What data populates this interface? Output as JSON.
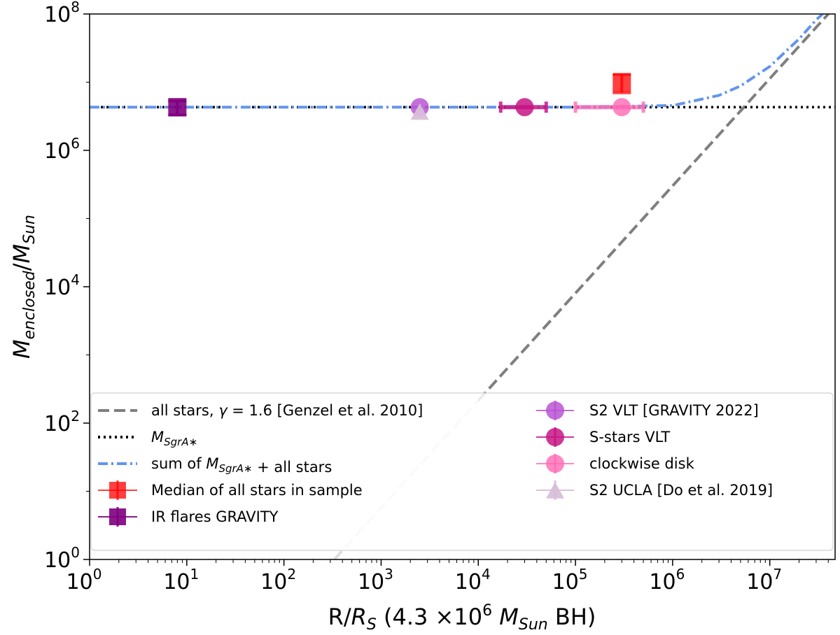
{
  "chart_data": {
    "type": "scatter",
    "title": "",
    "xlabel": {
      "main": "R/",
      "sym": "R",
      "sub": "S",
      "paren_open": " (4.3 ×10",
      "exp": "6",
      "msym": "M",
      "msub": "Sun",
      "tail": " BH)"
    },
    "ylabel": {
      "sym1": "M",
      "sub1": "enclosed",
      "slash": "/",
      "sym2": "M",
      "sub2": "Sun"
    },
    "xscale": "log",
    "yscale": "log",
    "xlim": [
      1,
      47000000
    ],
    "ylim": [
      1,
      100000000
    ],
    "xticks": [
      {
        "base": "10",
        "exp": "0"
      },
      {
        "base": "10",
        "exp": "1"
      },
      {
        "base": "10",
        "exp": "2"
      },
      {
        "base": "10",
        "exp": "3"
      },
      {
        "base": "10",
        "exp": "4"
      },
      {
        "base": "10",
        "exp": "5"
      },
      {
        "base": "10",
        "exp": "6"
      },
      {
        "base": "10",
        "exp": "7"
      }
    ],
    "yticks": [
      {
        "base": "10",
        "exp": "0"
      },
      {
        "base": "10",
        "exp": "2"
      },
      {
        "base": "10",
        "exp": "4"
      },
      {
        "base": "10",
        "exp": "6"
      },
      {
        "base": "10",
        "exp": "8"
      }
    ],
    "grid": false,
    "legend_position": "lower",
    "lines": [
      {
        "key": "stars",
        "name_pre": "all stars, ",
        "name_sym": "γ",
        "name_post": " = 1.6 [Genzel et al. 2010]",
        "color": "#7f7f7f",
        "style": "dashed",
        "faded_below_x": 10000,
        "faded_color": "#dddddd",
        "points": [
          [
            330,
            1
          ],
          [
            40000000,
            100000000
          ]
        ]
      },
      {
        "key": "bh",
        "name_sym": "M",
        "name_sub": "SgrA∗",
        "color": "#000000",
        "style": "dotted",
        "points": [
          [
            1,
            4300000
          ],
          [
            47000000,
            4300000
          ]
        ]
      },
      {
        "key": "sum",
        "name_pre": "sum of ",
        "name_sym": "M",
        "name_sub": "SgrA∗",
        "name_post": " + all stars",
        "color": "#6495ed",
        "style": "dashdot",
        "points": [
          [
            1,
            4300000
          ],
          [
            100000,
            4300000
          ],
          [
            1000000,
            4540000
          ],
          [
            3000000,
            6400000
          ],
          [
            5000000,
            8800000
          ],
          [
            10000000,
            17000000
          ],
          [
            20000000,
            43000000
          ],
          [
            30000000,
            82000000
          ],
          [
            35000000,
            100000000
          ]
        ]
      }
    ],
    "points": [
      {
        "key": "median",
        "name": "Median of all stars in sample",
        "color": "#ff0000",
        "marker": "square",
        "x": 300000,
        "y": 9800000,
        "yerr": [
          7000000,
          13000000
        ],
        "xerr": null,
        "alpha": 0.75
      },
      {
        "key": "flares",
        "name": "IR flares GRAVITY",
        "color": "#800080",
        "marker": "square",
        "x": 8,
        "y": 4300000,
        "yerr": [
          3300000,
          5300000
        ],
        "xerr": null,
        "alpha": 0.9
      },
      {
        "key": "s2vlt",
        "name": "S2 VLT [GRAVITY 2022]",
        "color": "#ba55d3",
        "marker": "circle",
        "x": 2500,
        "y": 4300000,
        "yerr": null,
        "xerr": null,
        "alpha": 0.85
      },
      {
        "key": "sstars",
        "name": "S-stars VLT",
        "color": "#c71585",
        "marker": "circle",
        "x": 30000,
        "y": 4300000,
        "yerr": null,
        "xerr": [
          17000,
          50000
        ],
        "alpha": 0.85
      },
      {
        "key": "cwdisk",
        "name": "clockwise disk",
        "color": "#ff69b4",
        "marker": "circle",
        "x": 300000,
        "y": 4300000,
        "yerr": null,
        "xerr": [
          100000,
          500000
        ],
        "alpha": 0.8
      },
      {
        "key": "s2ucla",
        "name": "S2 UCLA [Do et al. 2019]",
        "color": "#d8bfd8",
        "marker": "triangle",
        "x": 2500,
        "y": 3700000,
        "yerr": null,
        "xerr": null,
        "alpha": 0.95
      }
    ],
    "legend_left": [
      "stars",
      "bh",
      "sum",
      "median",
      "flares"
    ],
    "legend_right": [
      "s2vlt",
      "sstars",
      "cwdisk",
      "s2ucla"
    ]
  }
}
